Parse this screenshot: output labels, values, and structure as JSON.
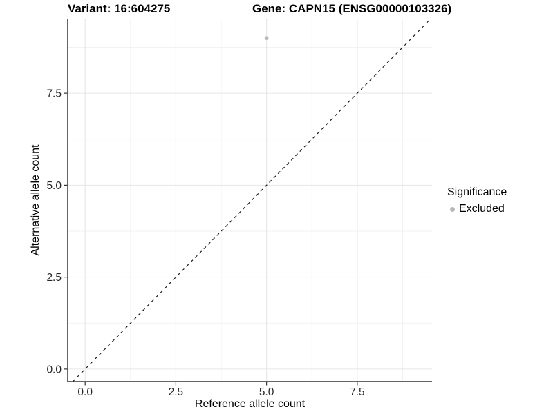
{
  "header": {
    "variant_title": "Variant: 16:604275",
    "gene_title": "Gene: CAPN15 (ENSG00000103326)"
  },
  "axes": {
    "x_label": "Reference allele count",
    "y_label": "Alternative allele count"
  },
  "legend": {
    "title": "Significance",
    "items": [
      {
        "label": "Excluded",
        "color": "#b8b8b8"
      }
    ]
  },
  "chart_data": {
    "type": "scatter",
    "title": "Variant: 16:604275  |  Gene: CAPN15 (ENSG00000103326)",
    "xlabel": "Reference allele count",
    "ylabel": "Alternative allele count",
    "xlim": [
      -0.48,
      9.56
    ],
    "ylim": [
      -0.34,
      9.51
    ],
    "x_ticks": [
      0.0,
      2.5,
      5.0,
      7.5
    ],
    "y_ticks": [
      0.0,
      2.5,
      5.0,
      7.5
    ],
    "x_minor_ticks": [
      1.25,
      3.75,
      6.25,
      8.75
    ],
    "y_minor_ticks": [
      1.25,
      3.75,
      6.25,
      8.75
    ],
    "tick_decimals": 1,
    "grid": true,
    "legend_position": "right",
    "legend_title": "Significance",
    "series": [
      {
        "name": "Excluded",
        "color": "#b8b8b8",
        "points": [
          [
            5,
            9
          ]
        ]
      }
    ],
    "reference_line": {
      "kind": "identity",
      "slope": 1,
      "intercept": 0,
      "style": "dashed",
      "color": "#1a1a1a"
    }
  },
  "colors": {
    "background": "#ffffff",
    "axis_line": "#333333",
    "major_grid": "#e6e6e6",
    "minor_grid": "#f2f2f2",
    "tick_text": "#262626",
    "point": "#b8b8b8"
  }
}
